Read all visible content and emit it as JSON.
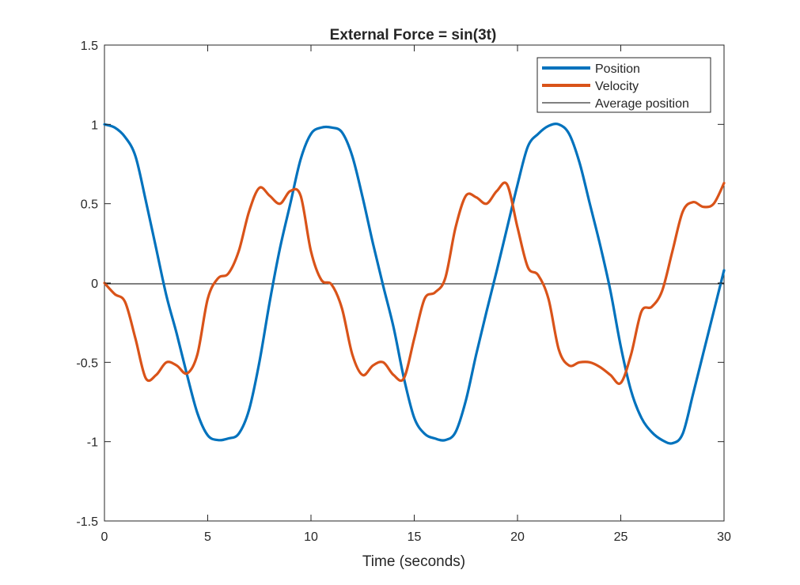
{
  "chart_data": {
    "type": "line",
    "title": "External Force = sin(3t)",
    "xlabel": "Time (seconds)",
    "ylabel": "",
    "xlim": [
      0,
      30
    ],
    "ylim": [
      -1.5,
      1.5
    ],
    "xticks": [
      0,
      5,
      10,
      15,
      20,
      25,
      30
    ],
    "xtick_labels": [
      "0",
      "5",
      "10",
      "15",
      "20",
      "25",
      "30"
    ],
    "yticks": [
      -1.5,
      -1,
      -0.5,
      0,
      0.5,
      1,
      1.5
    ],
    "ytick_labels": [
      "-1.5",
      "-1",
      "-0.5",
      "0",
      "0.5",
      "1",
      "1.5"
    ],
    "grid": false,
    "legend": "top-right",
    "series": [
      {
        "name": "Position",
        "color": "#0072BD",
        "x": [
          0,
          0.5,
          1,
          1.5,
          2,
          2.5,
          3,
          3.5,
          4,
          4.5,
          5,
          5.5,
          6,
          6.5,
          7,
          7.5,
          8,
          8.5,
          9,
          9.5,
          10,
          10.5,
          11,
          11.5,
          12,
          12.5,
          13,
          13.5,
          14,
          14.5,
          15,
          15.5,
          16,
          16.5,
          17,
          17.5,
          18,
          18.5,
          19,
          19.5,
          20,
          20.5,
          21,
          21.5,
          22,
          22.5,
          23,
          23.5,
          24,
          24.5,
          25,
          25.5,
          26,
          26.5,
          27,
          27.5,
          28,
          28.5,
          29,
          29.5,
          30
        ],
        "y": [
          1.0,
          0.98,
          0.92,
          0.8,
          0.52,
          0.22,
          -0.08,
          -0.32,
          -0.58,
          -0.82,
          -0.96,
          -0.99,
          -0.98,
          -0.95,
          -0.8,
          -0.5,
          -0.12,
          0.22,
          0.5,
          0.78,
          0.94,
          0.98,
          0.98,
          0.95,
          0.8,
          0.54,
          0.25,
          -0.02,
          -0.28,
          -0.6,
          -0.85,
          -0.95,
          -0.98,
          -0.99,
          -0.94,
          -0.74,
          -0.45,
          -0.18,
          0.08,
          0.35,
          0.62,
          0.86,
          0.94,
          0.99,
          1.0,
          0.94,
          0.76,
          0.5,
          0.24,
          -0.05,
          -0.4,
          -0.68,
          -0.85,
          -0.94,
          -0.99,
          -1.01,
          -0.95,
          -0.7,
          -0.44,
          -0.18,
          0.08
        ]
      },
      {
        "name": "Velocity",
        "color": "#D95319",
        "x": [
          0,
          0.5,
          1,
          1.5,
          2,
          2.5,
          3,
          3.5,
          4,
          4.5,
          5,
          5.5,
          6,
          6.5,
          7,
          7.5,
          8,
          8.5,
          9,
          9.5,
          10,
          10.5,
          11,
          11.5,
          12,
          12.5,
          13,
          13.5,
          14,
          14.5,
          15,
          15.5,
          16,
          16.5,
          17,
          17.5,
          18,
          18.5,
          19,
          19.5,
          20,
          20.5,
          21,
          21.5,
          22,
          22.5,
          23,
          23.5,
          24,
          24.5,
          25,
          25.5,
          26,
          26.5,
          27,
          27.5,
          28,
          28.5,
          29,
          29.5,
          30
        ],
        "y": [
          0.0,
          -0.07,
          -0.12,
          -0.35,
          -0.6,
          -0.58,
          -0.5,
          -0.52,
          -0.57,
          -0.45,
          -0.1,
          0.03,
          0.06,
          0.2,
          0.45,
          0.6,
          0.55,
          0.5,
          0.58,
          0.55,
          0.2,
          0.02,
          -0.01,
          -0.16,
          -0.45,
          -0.58,
          -0.52,
          -0.5,
          -0.58,
          -0.6,
          -0.35,
          -0.1,
          -0.06,
          0.03,
          0.35,
          0.55,
          0.54,
          0.5,
          0.58,
          0.62,
          0.35,
          0.1,
          0.05,
          -0.1,
          -0.42,
          -0.52,
          -0.5,
          -0.5,
          -0.53,
          -0.58,
          -0.63,
          -0.45,
          -0.18,
          -0.15,
          -0.05,
          0.2,
          0.45,
          0.51,
          0.48,
          0.5,
          0.63
        ]
      },
      {
        "name": "Average position",
        "color": "#000000",
        "x": [
          0,
          30
        ],
        "y": [
          -0.005,
          -0.005
        ]
      }
    ]
  }
}
